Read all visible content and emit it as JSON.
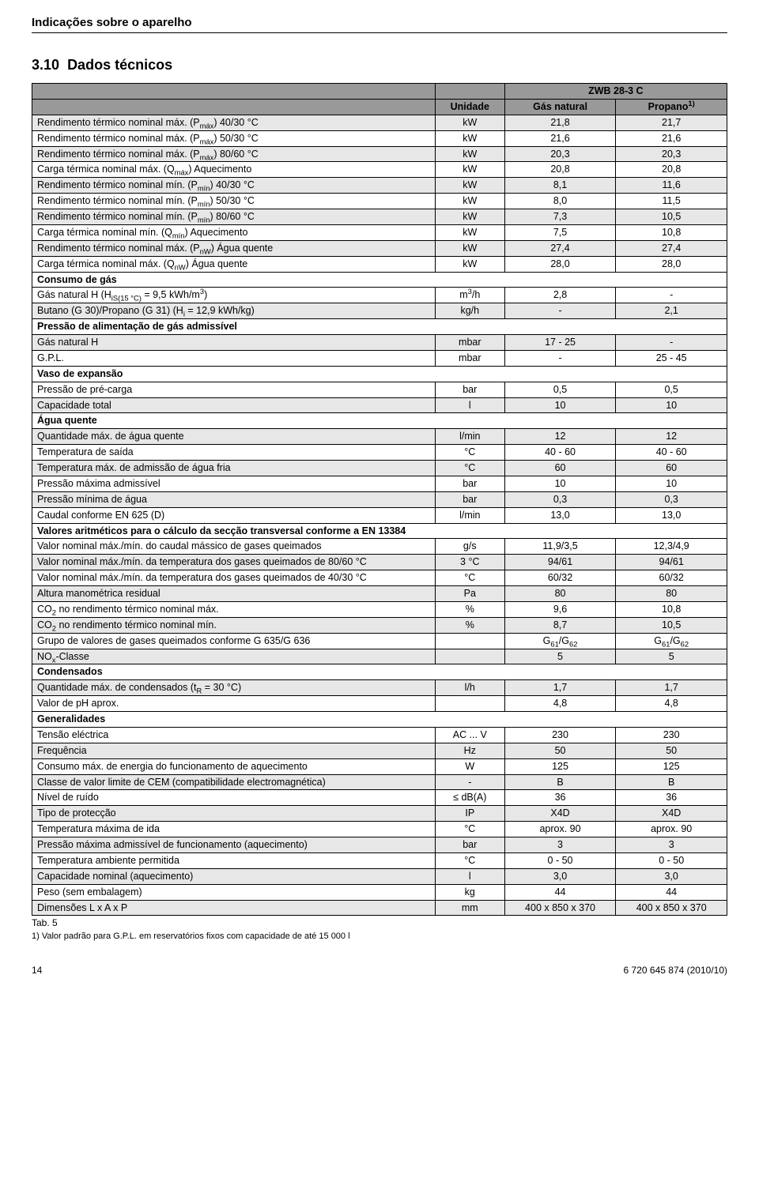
{
  "header": {
    "title": "Indicações sobre o aparelho"
  },
  "section": {
    "number": "3.10",
    "title": "Dados técnicos"
  },
  "tableHeader": {
    "model": "ZWB 28-3 C",
    "unit": "Unidade",
    "col1": "Gás natural",
    "col2": "Propano",
    "col2_sup": "1)"
  },
  "rows": [
    {
      "type": "row",
      "shade": true,
      "p": "Rendimento térmico nominal máx. (P_máx) 40/30 °C",
      "u": "kW",
      "v1": "21,8",
      "v2": "21,7"
    },
    {
      "type": "row",
      "shade": false,
      "p": "Rendimento térmico nominal máx. (P_máx) 50/30 °C",
      "u": "kW",
      "v1": "21,6",
      "v2": "21,6"
    },
    {
      "type": "row",
      "shade": true,
      "p": "Rendimento térmico nominal máx. (P_máx) 80/60 °C",
      "u": "kW",
      "v1": "20,3",
      "v2": "20,3"
    },
    {
      "type": "row",
      "shade": false,
      "p": "Carga térmica nominal máx. (Q_máx) Aquecimento",
      "u": "kW",
      "v1": "20,8",
      "v2": "20,8"
    },
    {
      "type": "row",
      "shade": true,
      "p": "Rendimento térmico nominal mín. (P_mín) 40/30 °C",
      "u": "kW",
      "v1": "8,1",
      "v2": "11,6"
    },
    {
      "type": "row",
      "shade": false,
      "p": "Rendimento térmico nominal mín. (P_mín) 50/30 °C",
      "u": "kW",
      "v1": "8,0",
      "v2": "11,5"
    },
    {
      "type": "row",
      "shade": true,
      "p": "Rendimento térmico nominal mín. (P_mín) 80/60 °C",
      "u": "kW",
      "v1": "7,3",
      "v2": "10,5"
    },
    {
      "type": "row",
      "shade": false,
      "p": "Carga térmica nominal mín. (Q_mín) Aquecimento",
      "u": "kW",
      "v1": "7,5",
      "v2": "10,8"
    },
    {
      "type": "row",
      "shade": true,
      "p": "Rendimento térmico nominal máx. (P_nW) Água quente",
      "u": "kW",
      "v1": "27,4",
      "v2": "27,4"
    },
    {
      "type": "row",
      "shade": false,
      "p": "Carga térmica nominal máx. (Q_nW) Água quente",
      "u": "kW",
      "v1": "28,0",
      "v2": "28,0"
    },
    {
      "type": "section",
      "p": "Consumo de gás"
    },
    {
      "type": "row",
      "shade": false,
      "p": "Gás natural H (H_iS(15 °C) = 9,5 kWh/m³)",
      "u": "m³/h",
      "v1": "2,8",
      "v2": "-"
    },
    {
      "type": "row",
      "shade": true,
      "p": "Butano (G 30)/Propano (G 31) (H_i = 12,9 kWh/kg)",
      "u": "kg/h",
      "v1": "-",
      "v2": "2,1"
    },
    {
      "type": "section",
      "p": "Pressão de alimentação de gás admissível"
    },
    {
      "type": "row",
      "shade": true,
      "p": "Gás natural H",
      "u": "mbar",
      "v1": "17 - 25",
      "v2": "-"
    },
    {
      "type": "row",
      "shade": false,
      "p": "G.P.L.",
      "u": "mbar",
      "v1": "-",
      "v2": "25 - 45"
    },
    {
      "type": "section",
      "p": "Vaso de expansão"
    },
    {
      "type": "row",
      "shade": false,
      "p": "Pressão de pré-carga",
      "u": "bar",
      "v1": "0,5",
      "v2": "0,5"
    },
    {
      "type": "row",
      "shade": true,
      "p": "Capacidade total",
      "u": "l",
      "v1": "10",
      "v2": "10"
    },
    {
      "type": "section",
      "p": "Água quente"
    },
    {
      "type": "row",
      "shade": true,
      "p": "Quantidade máx. de água quente",
      "u": "l/min",
      "v1": "12",
      "v2": "12"
    },
    {
      "type": "row",
      "shade": false,
      "p": "Temperatura de saída",
      "u": "°C",
      "v1": "40 - 60",
      "v2": "40 - 60"
    },
    {
      "type": "row",
      "shade": true,
      "p": "Temperatura máx. de admissão de água fria",
      "u": "°C",
      "v1": "60",
      "v2": "60"
    },
    {
      "type": "row",
      "shade": false,
      "p": "Pressão máxima admissível",
      "u": "bar",
      "v1": "10",
      "v2": "10"
    },
    {
      "type": "row",
      "shade": true,
      "p": "Pressão mínima de água",
      "u": "bar",
      "v1": "0,3",
      "v2": "0,3"
    },
    {
      "type": "row",
      "shade": false,
      "p": "Caudal conforme EN 625 (D)",
      "u": "l/min",
      "v1": "13,0",
      "v2": "13,0"
    },
    {
      "type": "section",
      "p": "Valores aritméticos para o cálculo da secção transversal conforme a EN 13384"
    },
    {
      "type": "row",
      "shade": false,
      "p": "Valor nominal máx./mín. do caudal mássico de gases queimados",
      "u": "g/s",
      "v1": "11,9/3,5",
      "v2": "12,3/4,9"
    },
    {
      "type": "row",
      "shade": true,
      "p": "Valor nominal máx./mín. da temperatura dos gases queimados de 80/60 °C",
      "u": "3 °C",
      "v1": "94/61",
      "v2": "94/61"
    },
    {
      "type": "row",
      "shade": false,
      "p": "Valor nominal máx./mín. da temperatura dos gases queimados de 40/30 °C",
      "u": "°C",
      "v1": "60/32",
      "v2": "60/32"
    },
    {
      "type": "row",
      "shade": true,
      "p": "Altura manométrica residual",
      "u": "Pa",
      "v1": "80",
      "v2": "80"
    },
    {
      "type": "row",
      "shade": false,
      "p": "CO₂ no rendimento térmico nominal máx.",
      "u": "%",
      "v1": "9,6",
      "v2": "10,8"
    },
    {
      "type": "row",
      "shade": true,
      "p": "CO₂ no rendimento térmico nominal mín.",
      "u": "%",
      "v1": "8,7",
      "v2": "10,5"
    },
    {
      "type": "row",
      "shade": false,
      "p": "Grupo de valores de gases queimados conforme G 635/G 636",
      "u": "",
      "v1": "G₆₁/G₆₂",
      "v2": "G₆₁/G₆₂"
    },
    {
      "type": "row",
      "shade": true,
      "p": "NOₓ-Classe",
      "u": "",
      "v1": "5",
      "v2": "5"
    },
    {
      "type": "section",
      "p": "Condensados"
    },
    {
      "type": "row",
      "shade": true,
      "p": "Quantidade máx. de condensados (t_R = 30 °C)",
      "u": "l/h",
      "v1": "1,7",
      "v2": "1,7"
    },
    {
      "type": "row",
      "shade": false,
      "p": "Valor de pH aprox.",
      "u": "",
      "v1": "4,8",
      "v2": "4,8"
    },
    {
      "type": "section",
      "p": "Generalidades"
    },
    {
      "type": "row",
      "shade": false,
      "p": "Tensão eléctrica",
      "u": "AC ... V",
      "v1": "230",
      "v2": "230"
    },
    {
      "type": "row",
      "shade": true,
      "p": "Frequência",
      "u": "Hz",
      "v1": "50",
      "v2": "50"
    },
    {
      "type": "row",
      "shade": false,
      "p": "Consumo máx. de energia do funcionamento de aquecimento",
      "u": "W",
      "v1": "125",
      "v2": "125"
    },
    {
      "type": "row",
      "shade": true,
      "p": "Classe de valor limite de CEM (compatibilidade electromagnética)",
      "u": "-",
      "v1": "B",
      "v2": "B"
    },
    {
      "type": "row",
      "shade": false,
      "p": "Nível de ruído",
      "u": "≤ dB(A)",
      "v1": "36",
      "v2": "36"
    },
    {
      "type": "row",
      "shade": true,
      "p": "Tipo de protecção",
      "u": "IP",
      "v1": "X4D",
      "v2": "X4D"
    },
    {
      "type": "row",
      "shade": false,
      "p": "Temperatura máxima de ida",
      "u": "°C",
      "v1": "aprox. 90",
      "v2": "aprox. 90"
    },
    {
      "type": "row",
      "shade": true,
      "p": "Pressão máxima admissível de funcionamento (aquecimento)",
      "u": "bar",
      "v1": "3",
      "v2": "3"
    },
    {
      "type": "row",
      "shade": false,
      "p": "Temperatura ambiente permitida",
      "u": "°C",
      "v1": "0 - 50",
      "v2": "0 - 50"
    },
    {
      "type": "row",
      "shade": true,
      "p": "Capacidade nominal (aquecimento)",
      "u": "l",
      "v1": "3,0",
      "v2": "3,0"
    },
    {
      "type": "row",
      "shade": false,
      "p": "Peso (sem embalagem)",
      "u": "kg",
      "v1": "44",
      "v2": "44"
    },
    {
      "type": "row",
      "shade": true,
      "p": "Dimensões L x A x P",
      "u": "mm",
      "v1": "400 x 850 x 370",
      "v2": "400 x 850 x 370"
    }
  ],
  "tabCaption": "Tab. 5",
  "footnote": "1) Valor padrão para G.P.L. em reservatórios fixos com capacidade de até 15 000 l",
  "footer": {
    "page": "14",
    "doc": "6 720 645 874 (2010/10)"
  }
}
